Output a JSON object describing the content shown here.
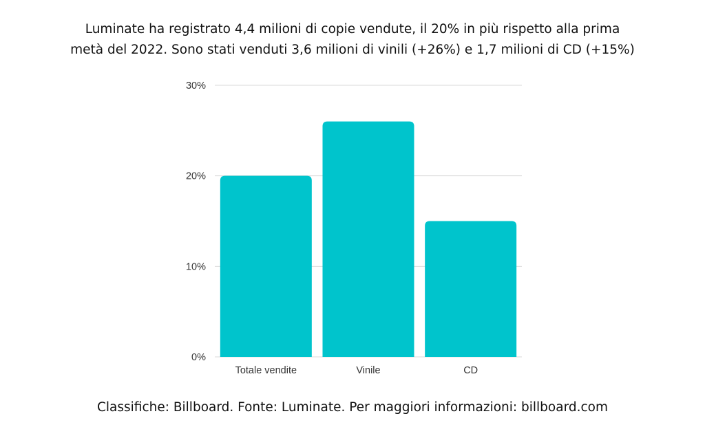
{
  "title_lines": [
    "Luminate ha registrato 4,4 milioni di copie vendute, il 20% in più rispetto alla prima",
    "metà del 2022. Sono stati venduti 3,6 milioni di vinili (+26%) e 1,7 milioni di CD (+15%)"
  ],
  "footer": "Classifiche: Billboard. Fonte: Luminate. Per maggiori informazioni: billboard.com",
  "chart_data": {
    "type": "bar",
    "title": "Luminate ha registrato 4,4 milioni di copie vendute, il 20% in più rispetto alla prima metà del 2022. Sono stati venduti 3,6 milioni di vinili (+26%) e 1,7 milioni di CD (+15%)",
    "categories": [
      "Totale vendite",
      "Vinile",
      "CD"
    ],
    "values": [
      20,
      26,
      15
    ],
    "unit": "%",
    "ylim": [
      0,
      30
    ],
    "yticks": [
      0,
      10,
      20,
      30
    ],
    "ytick_labels": [
      "0%",
      "10%",
      "20%",
      "30%"
    ],
    "xlabel": "",
    "ylabel": "",
    "grid": true,
    "legend": "none",
    "bar_color": "#00C4CC",
    "grid_color": "#D9D9D9"
  }
}
